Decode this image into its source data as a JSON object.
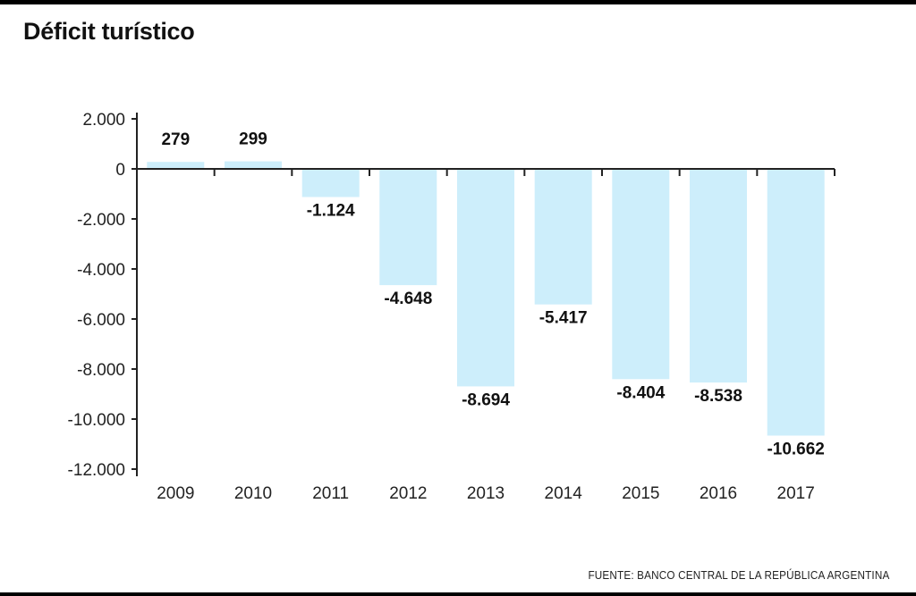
{
  "title": "Déficit turístico",
  "source": "FUENTE: BANCO CENTRAL DE LA REPÚBLICA ARGENTINA",
  "colors": {
    "bar": "#cdeefb",
    "axis": "#222222",
    "text": "#111111"
  },
  "chart_data": {
    "type": "bar",
    "title": "Déficit turístico",
    "xlabel": "",
    "ylabel": "",
    "categories": [
      "2009",
      "2010",
      "2011",
      "2012",
      "2013",
      "2014",
      "2015",
      "2016",
      "2017"
    ],
    "values": [
      279,
      299,
      -1124,
      -4648,
      -8694,
      -5417,
      -8404,
      -8538,
      -10662
    ],
    "value_labels": [
      "279",
      "299",
      "-1.124",
      "-4.648",
      "-8.694",
      "-5.417",
      "-8.404",
      "-8.538",
      "-10.662"
    ],
    "yticks": [
      2000,
      0,
      -2000,
      -4000,
      -6000,
      -8000,
      -10000,
      -12000
    ],
    "ytick_labels": [
      "2.000",
      "0",
      "-2.000",
      "-4.000",
      "-6.000",
      "-8.000",
      "-10.000",
      "-12.000"
    ],
    "ylim": [
      -12000,
      2000
    ],
    "grid": false,
    "legend": "none"
  }
}
